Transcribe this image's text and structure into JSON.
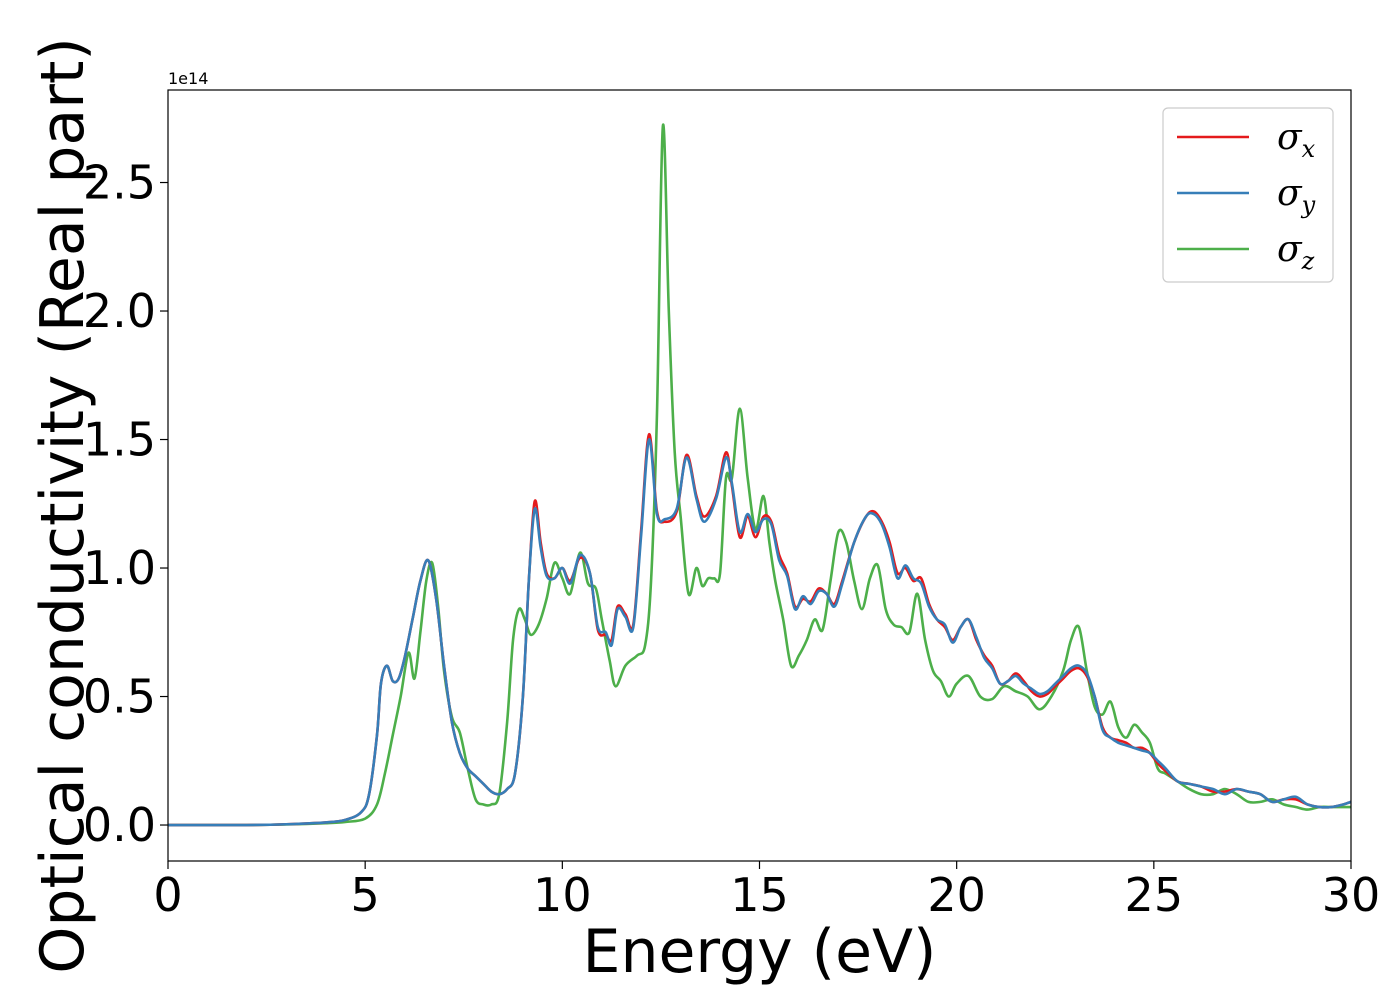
{
  "chart_data": {
    "type": "line",
    "xlabel": "Energy (eV)",
    "ylabel": "Optical conductivity (Real part)",
    "y_offset_label": "1e14",
    "y_scale": 100000000000000.0,
    "xlim": [
      0,
      30
    ],
    "ylim": [
      -0.14,
      2.86
    ],
    "xticks": [
      0,
      5,
      10,
      15,
      20,
      25,
      30
    ],
    "xtick_labels": [
      "0",
      "5",
      "10",
      "15",
      "20",
      "25",
      "30"
    ],
    "yticks": [
      0.0,
      0.5,
      1.0,
      1.5,
      2.0,
      2.5
    ],
    "ytick_labels": [
      "0.0",
      "0.5",
      "1.0",
      "1.5",
      "2.0",
      "2.5"
    ],
    "grid": false,
    "legend_position": "top-right",
    "series": [
      {
        "name": "σx",
        "symbol": "σ",
        "subscript": "x",
        "color": "#e41a1c",
        "x": [
          0,
          2,
          3,
          4,
          4.5,
          4.9,
          5.1,
          5.3,
          5.4,
          5.55,
          5.7,
          5.85,
          6.0,
          6.2,
          6.4,
          6.6,
          6.8,
          7.0,
          7.2,
          7.4,
          7.6,
          7.8,
          8.0,
          8.2,
          8.4,
          8.6,
          8.8,
          9.0,
          9.15,
          9.3,
          9.45,
          9.6,
          9.8,
          10.0,
          10.2,
          10.45,
          10.7,
          10.9,
          11.1,
          11.25,
          11.4,
          11.6,
          11.8,
          12.0,
          12.2,
          12.4,
          12.6,
          12.9,
          13.15,
          13.4,
          13.6,
          13.9,
          14.15,
          14.3,
          14.5,
          14.7,
          14.9,
          15.1,
          15.3,
          15.5,
          15.7,
          15.9,
          16.1,
          16.3,
          16.5,
          16.7,
          16.9,
          17.1,
          17.4,
          17.7,
          17.9,
          18.1,
          18.3,
          18.5,
          18.7,
          18.9,
          19.1,
          19.3,
          19.5,
          19.7,
          19.9,
          20.1,
          20.3,
          20.5,
          20.7,
          20.9,
          21.1,
          21.3,
          21.5,
          21.7,
          21.9,
          22.1,
          22.3,
          22.5,
          22.7,
          22.9,
          23.1,
          23.3,
          23.5,
          23.7,
          23.9,
          24.1,
          24.3,
          24.5,
          24.7,
          24.9,
          25.1,
          25.3,
          25.6,
          25.9,
          26.2,
          26.5,
          26.8,
          27.1,
          27.4,
          27.7,
          28.0,
          28.3,
          28.6,
          28.9,
          29.2,
          29.5,
          29.8,
          30
        ],
        "y": [
          0,
          0,
          0.003,
          0.01,
          0.02,
          0.05,
          0.12,
          0.35,
          0.55,
          0.62,
          0.56,
          0.57,
          0.65,
          0.8,
          0.95,
          1.03,
          0.88,
          0.62,
          0.4,
          0.28,
          0.22,
          0.19,
          0.16,
          0.13,
          0.12,
          0.14,
          0.2,
          0.5,
          0.95,
          1.26,
          1.1,
          0.98,
          0.96,
          1.0,
          0.95,
          1.04,
          0.98,
          0.76,
          0.74,
          0.72,
          0.85,
          0.82,
          0.78,
          1.15,
          1.52,
          1.22,
          1.18,
          1.22,
          1.44,
          1.28,
          1.2,
          1.28,
          1.45,
          1.32,
          1.12,
          1.2,
          1.12,
          1.2,
          1.18,
          1.05,
          0.98,
          0.85,
          0.88,
          0.87,
          0.92,
          0.9,
          0.86,
          0.95,
          1.1,
          1.2,
          1.22,
          1.18,
          1.1,
          0.98,
          1.0,
          0.95,
          0.96,
          0.86,
          0.8,
          0.77,
          0.72,
          0.77,
          0.8,
          0.72,
          0.66,
          0.62,
          0.55,
          0.56,
          0.59,
          0.56,
          0.52,
          0.5,
          0.51,
          0.54,
          0.57,
          0.6,
          0.61,
          0.58,
          0.5,
          0.38,
          0.34,
          0.33,
          0.32,
          0.3,
          0.3,
          0.28,
          0.24,
          0.21,
          0.17,
          0.16,
          0.15,
          0.13,
          0.13,
          0.14,
          0.13,
          0.12,
          0.09,
          0.1,
          0.1,
          0.08,
          0.07,
          0.07,
          0.08,
          0.09
        ]
      },
      {
        "name": "σy",
        "symbol": "σ",
        "subscript": "y",
        "color": "#377eb8",
        "x": [
          0,
          2,
          3,
          4,
          4.5,
          4.9,
          5.1,
          5.3,
          5.4,
          5.55,
          5.7,
          5.85,
          6.0,
          6.2,
          6.4,
          6.6,
          6.8,
          7.0,
          7.2,
          7.4,
          7.6,
          7.8,
          8.0,
          8.2,
          8.4,
          8.6,
          8.8,
          9.0,
          9.15,
          9.3,
          9.45,
          9.6,
          9.8,
          10.0,
          10.2,
          10.45,
          10.7,
          10.9,
          11.1,
          11.25,
          11.4,
          11.6,
          11.8,
          12.0,
          12.2,
          12.4,
          12.6,
          12.9,
          13.15,
          13.4,
          13.6,
          13.9,
          14.15,
          14.3,
          14.5,
          14.7,
          14.9,
          15.1,
          15.3,
          15.5,
          15.7,
          15.9,
          16.1,
          16.3,
          16.5,
          16.7,
          16.9,
          17.1,
          17.4,
          17.7,
          17.9,
          18.1,
          18.3,
          18.5,
          18.7,
          18.9,
          19.1,
          19.3,
          19.5,
          19.7,
          19.9,
          20.1,
          20.3,
          20.5,
          20.7,
          20.9,
          21.1,
          21.3,
          21.5,
          21.7,
          21.9,
          22.1,
          22.3,
          22.5,
          22.7,
          22.9,
          23.1,
          23.3,
          23.5,
          23.7,
          23.9,
          24.1,
          24.3,
          24.5,
          24.7,
          24.9,
          25.1,
          25.3,
          25.6,
          25.9,
          26.2,
          26.5,
          26.8,
          27.1,
          27.4,
          27.7,
          28.0,
          28.3,
          28.6,
          28.9,
          29.2,
          29.5,
          29.8,
          30
        ],
        "y": [
          0,
          0,
          0.003,
          0.01,
          0.02,
          0.05,
          0.12,
          0.35,
          0.55,
          0.62,
          0.56,
          0.57,
          0.65,
          0.8,
          0.95,
          1.03,
          0.88,
          0.62,
          0.4,
          0.28,
          0.22,
          0.19,
          0.16,
          0.13,
          0.12,
          0.14,
          0.2,
          0.5,
          0.95,
          1.23,
          1.08,
          0.97,
          0.96,
          1.0,
          0.94,
          1.05,
          0.98,
          0.77,
          0.75,
          0.7,
          0.84,
          0.81,
          0.77,
          1.13,
          1.5,
          1.21,
          1.19,
          1.23,
          1.43,
          1.27,
          1.18,
          1.27,
          1.43,
          1.33,
          1.14,
          1.21,
          1.14,
          1.19,
          1.17,
          1.03,
          0.97,
          0.84,
          0.89,
          0.86,
          0.91,
          0.9,
          0.85,
          0.94,
          1.1,
          1.2,
          1.21,
          1.17,
          1.08,
          0.96,
          1.01,
          0.96,
          0.94,
          0.85,
          0.8,
          0.78,
          0.71,
          0.77,
          0.8,
          0.73,
          0.65,
          0.61,
          0.55,
          0.56,
          0.58,
          0.55,
          0.53,
          0.51,
          0.52,
          0.55,
          0.58,
          0.61,
          0.62,
          0.59,
          0.5,
          0.37,
          0.34,
          0.32,
          0.31,
          0.3,
          0.29,
          0.28,
          0.25,
          0.22,
          0.17,
          0.16,
          0.15,
          0.14,
          0.12,
          0.14,
          0.13,
          0.12,
          0.09,
          0.1,
          0.11,
          0.08,
          0.07,
          0.07,
          0.08,
          0.09
        ]
      },
      {
        "name": "σz",
        "symbol": "σ",
        "subscript": "z",
        "color": "#4daf4a",
        "x": [
          0,
          2,
          3,
          4,
          4.5,
          5.0,
          5.3,
          5.5,
          5.7,
          5.9,
          6.1,
          6.25,
          6.4,
          6.55,
          6.7,
          6.85,
          7.0,
          7.2,
          7.4,
          7.6,
          7.8,
          8.0,
          8.2,
          8.4,
          8.6,
          8.75,
          8.9,
          9.05,
          9.2,
          9.4,
          9.6,
          9.8,
          10.0,
          10.2,
          10.45,
          10.65,
          10.85,
          11.0,
          11.2,
          11.35,
          11.6,
          11.9,
          12.1,
          12.25,
          12.4,
          12.55,
          12.7,
          12.85,
          13.0,
          13.2,
          13.4,
          13.55,
          13.7,
          13.85,
          14.0,
          14.15,
          14.3,
          14.5,
          14.7,
          14.9,
          15.1,
          15.25,
          15.4,
          15.6,
          15.8,
          16.0,
          16.2,
          16.4,
          16.6,
          16.8,
          17.0,
          17.2,
          17.4,
          17.6,
          17.8,
          18.0,
          18.2,
          18.4,
          18.6,
          18.8,
          19.0,
          19.2,
          19.4,
          19.6,
          19.8,
          20.0,
          20.3,
          20.6,
          20.9,
          21.2,
          21.5,
          21.8,
          22.1,
          22.4,
          22.7,
          22.9,
          23.1,
          23.3,
          23.5,
          23.7,
          23.9,
          24.1,
          24.3,
          24.5,
          24.7,
          24.9,
          25.1,
          25.3,
          25.6,
          25.9,
          26.2,
          26.5,
          26.8,
          27.1,
          27.4,
          27.7,
          28.0,
          28.3,
          28.6,
          28.9,
          29.2,
          29.5,
          29.8,
          30
        ],
        "y": [
          0,
          0,
          0.002,
          0.007,
          0.012,
          0.025,
          0.08,
          0.2,
          0.35,
          0.5,
          0.67,
          0.57,
          0.75,
          0.95,
          1.02,
          0.85,
          0.6,
          0.42,
          0.36,
          0.22,
          0.1,
          0.08,
          0.08,
          0.12,
          0.4,
          0.72,
          0.84,
          0.8,
          0.74,
          0.78,
          0.88,
          1.02,
          0.96,
          0.9,
          1.06,
          0.94,
          0.92,
          0.8,
          0.64,
          0.54,
          0.62,
          0.66,
          0.7,
          0.95,
          1.6,
          2.72,
          2.0,
          1.45,
          1.2,
          0.9,
          1.0,
          0.93,
          0.96,
          0.96,
          0.98,
          1.35,
          1.35,
          1.62,
          1.35,
          1.15,
          1.28,
          1.1,
          0.95,
          0.8,
          0.62,
          0.66,
          0.72,
          0.8,
          0.76,
          0.95,
          1.14,
          1.1,
          0.95,
          0.84,
          0.96,
          1.01,
          0.84,
          0.78,
          0.77,
          0.75,
          0.9,
          0.72,
          0.6,
          0.56,
          0.5,
          0.55,
          0.58,
          0.5,
          0.49,
          0.54,
          0.52,
          0.5,
          0.45,
          0.5,
          0.6,
          0.72,
          0.77,
          0.6,
          0.46,
          0.43,
          0.48,
          0.38,
          0.34,
          0.39,
          0.36,
          0.32,
          0.22,
          0.2,
          0.17,
          0.14,
          0.12,
          0.12,
          0.14,
          0.12,
          0.09,
          0.09,
          0.1,
          0.08,
          0.07,
          0.06,
          0.07,
          0.07,
          0.07,
          0.07
        ]
      }
    ]
  },
  "colors": {
    "frame": "#000000",
    "background": "#ffffff",
    "legend_border": "#cccccc"
  }
}
